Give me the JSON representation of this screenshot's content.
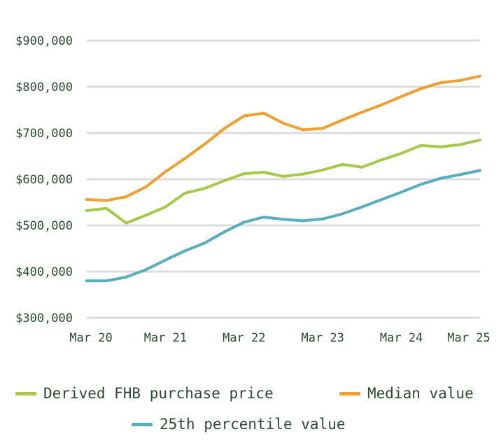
{
  "chart_data": {
    "type": "line",
    "x": [
      "Mar 20",
      "Jun 20",
      "Sep 20",
      "Dec 20",
      "Mar 21",
      "Jun 21",
      "Sep 21",
      "Dec 21",
      "Mar 22",
      "Jun 22",
      "Sep 22",
      "Dec 22",
      "Mar 23",
      "Jun 23",
      "Sep 23",
      "Dec 23",
      "Mar 24",
      "Jun 24",
      "Sep 24",
      "Dec 24",
      "Mar 25"
    ],
    "x_tick_labels": [
      "Mar 20",
      "Mar 21",
      "Mar 22",
      "Mar 23",
      "Mar 24",
      "Mar 25"
    ],
    "y_tick_labels": [
      "$900,000",
      "$800,000",
      "$700,000",
      "$600,000",
      "$500,000",
      "$400,000",
      "$300,000"
    ],
    "y_ticks": [
      900000,
      800000,
      700000,
      600000,
      500000,
      400000,
      300000
    ],
    "ylim": [
      300000,
      900000
    ],
    "grid": "horizontal",
    "legend_position": "bottom",
    "series": [
      {
        "name": "Derived FHB purchase price",
        "color": "#a8c84a",
        "values": [
          532000,
          537000,
          505000,
          522000,
          540000,
          570000,
          580000,
          597000,
          612000,
          615000,
          606000,
          611000,
          620000,
          632000,
          626000,
          642000,
          656000,
          673000,
          670000,
          675000,
          685000
        ]
      },
      {
        "name": "Median value",
        "color": "#f0a030",
        "values": [
          556000,
          554000,
          562000,
          583000,
          616000,
          645000,
          676000,
          710000,
          737000,
          743000,
          721000,
          707000,
          710000,
          728000,
          745000,
          761000,
          779000,
          796000,
          809000,
          814000,
          823000
        ]
      },
      {
        "name": "25th percentile value",
        "color": "#56aebf",
        "values": [
          380000,
          380000,
          388000,
          404000,
          425000,
          445000,
          462000,
          486000,
          507000,
          518000,
          513000,
          510000,
          514000,
          525000,
          540000,
          556000,
          572000,
          589000,
          602000,
          610000,
          619000
        ]
      }
    ]
  }
}
